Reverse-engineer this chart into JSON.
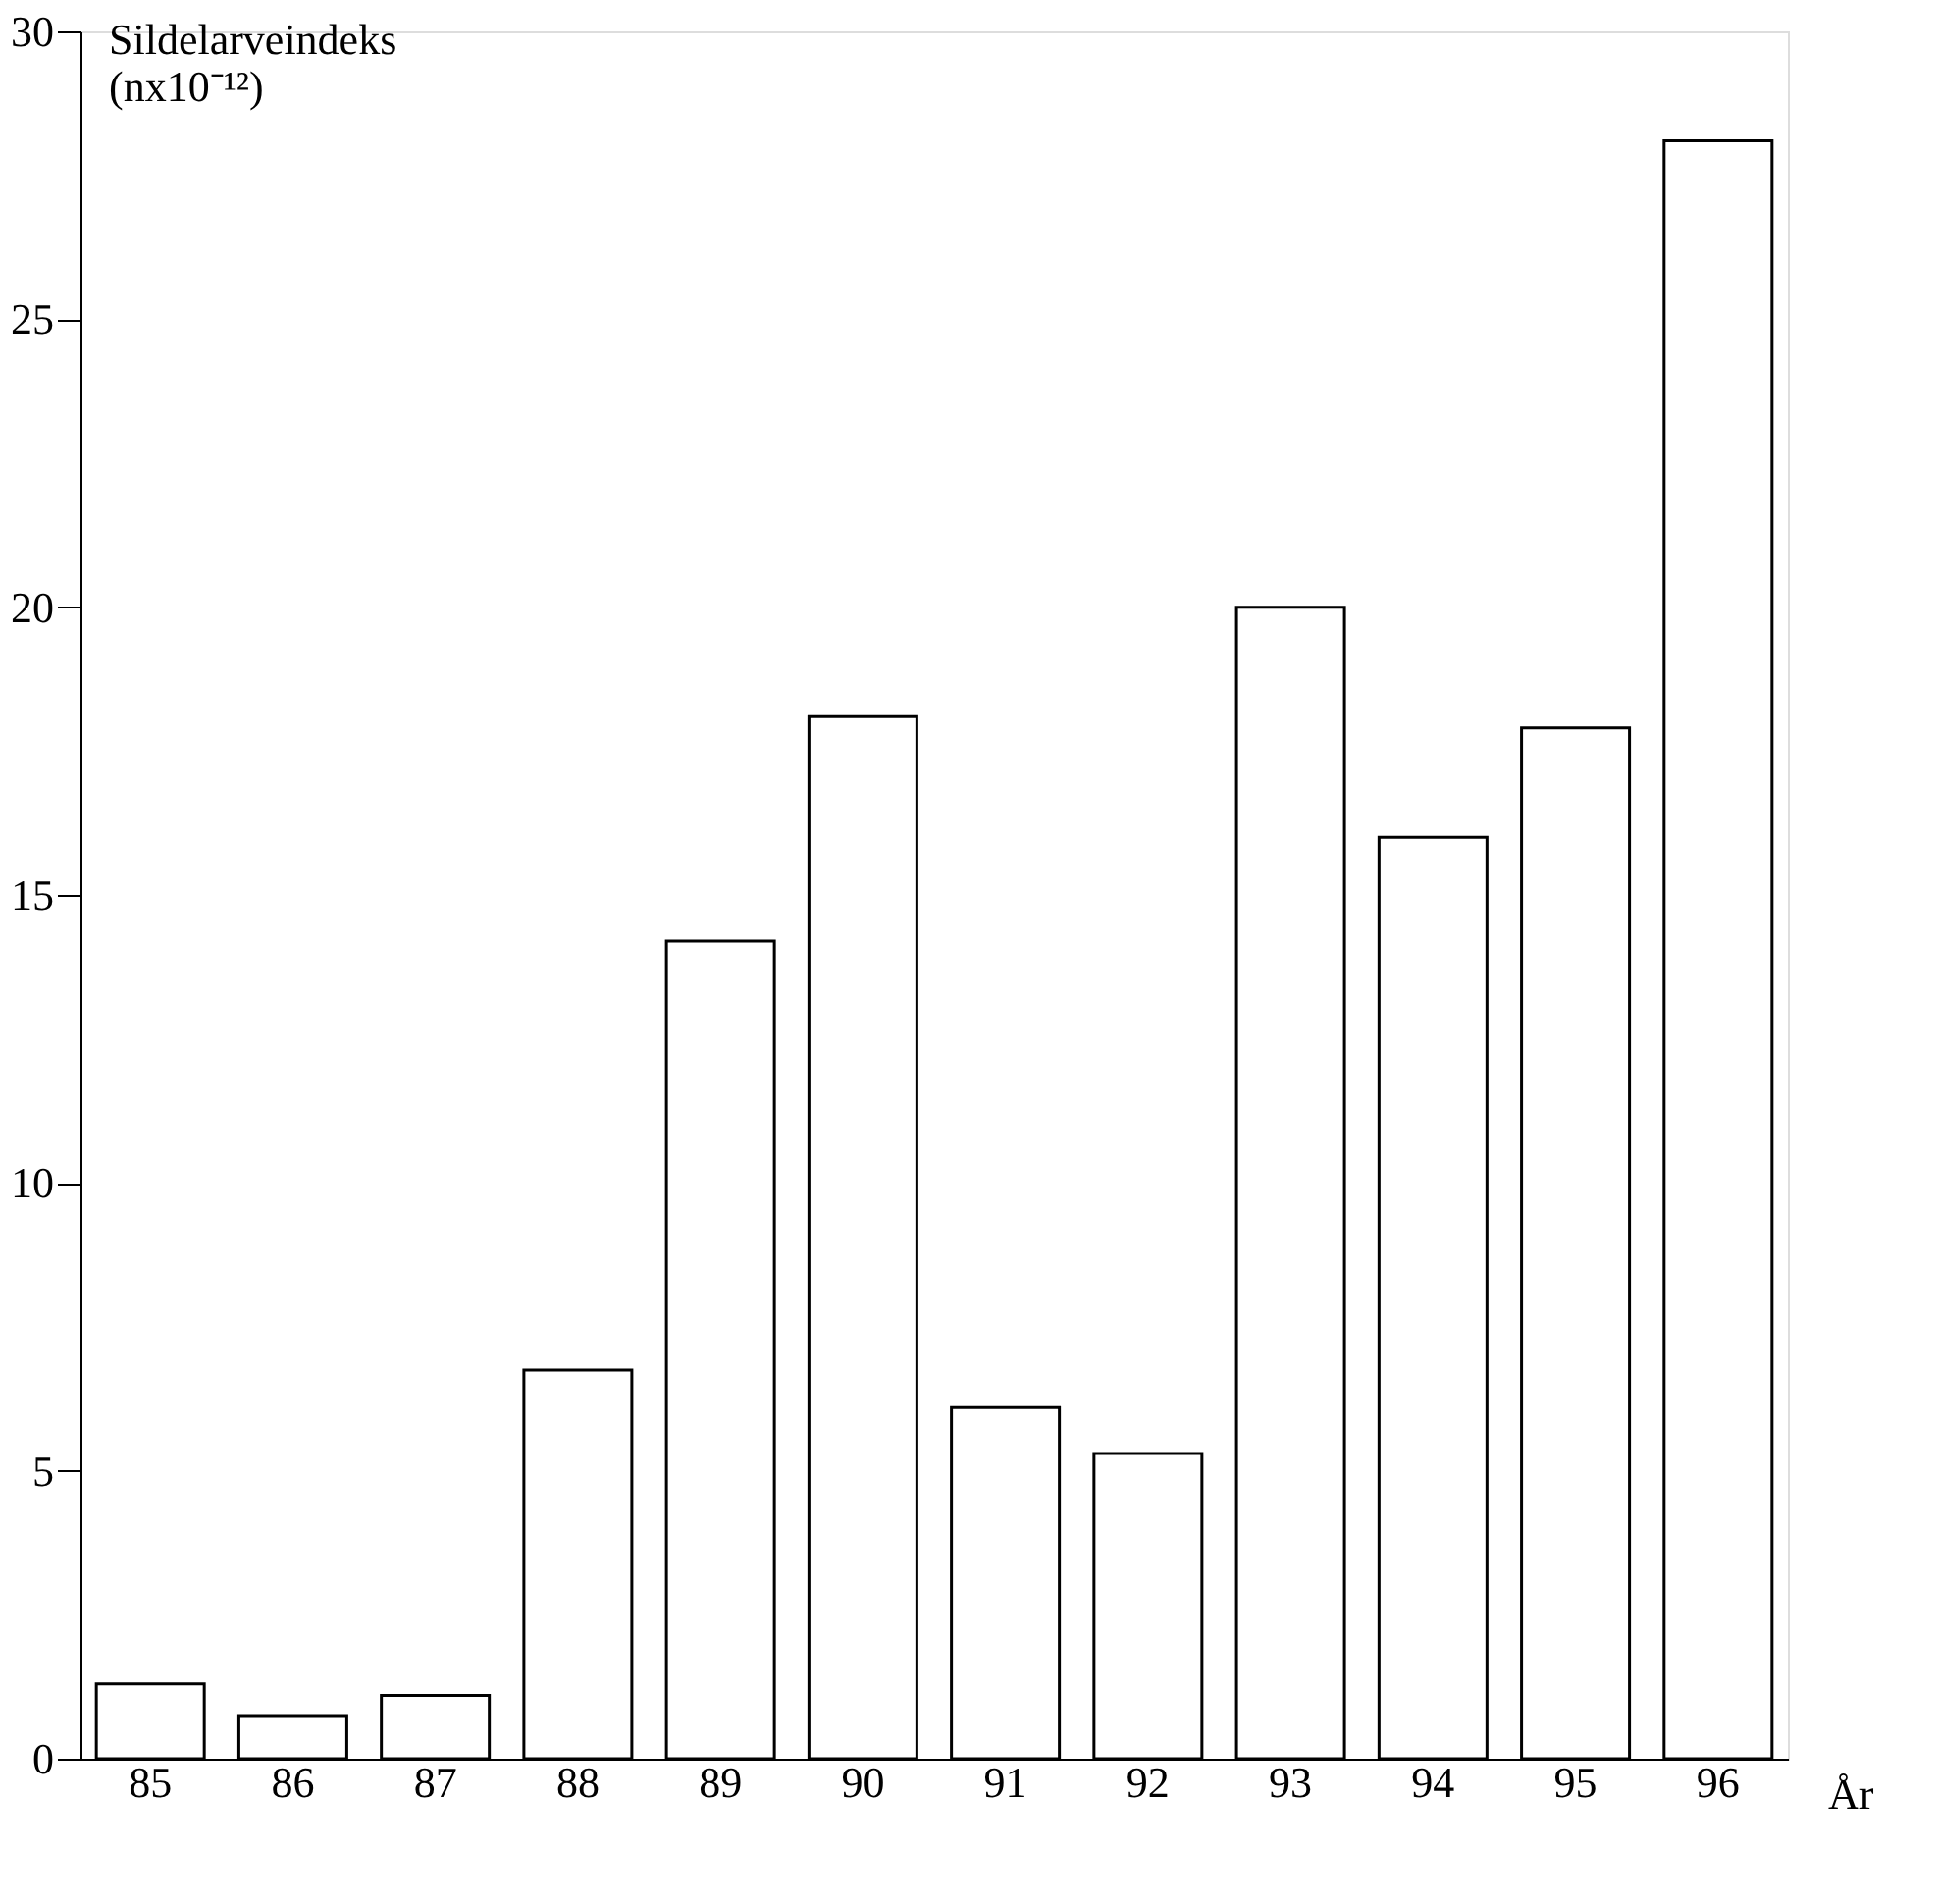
{
  "chart_data": {
    "type": "bar",
    "ylabel": "Sildelarveindeks\n(nx10⁻¹²)",
    "xlabel": "År",
    "categories": [
      "85",
      "86",
      "87",
      "88",
      "89",
      "90",
      "91",
      "92",
      "93",
      "94",
      "95",
      "96"
    ],
    "values": [
      1.3,
      0.75,
      1.1,
      6.75,
      14.2,
      18.1,
      6.1,
      5.3,
      20.0,
      16.0,
      17.9,
      28.1
    ],
    "color": "#ffffff",
    "ylim": [
      0,
      30
    ],
    "yticks": [
      0,
      5,
      10,
      15,
      20,
      25,
      30
    ],
    "grid": false
  }
}
